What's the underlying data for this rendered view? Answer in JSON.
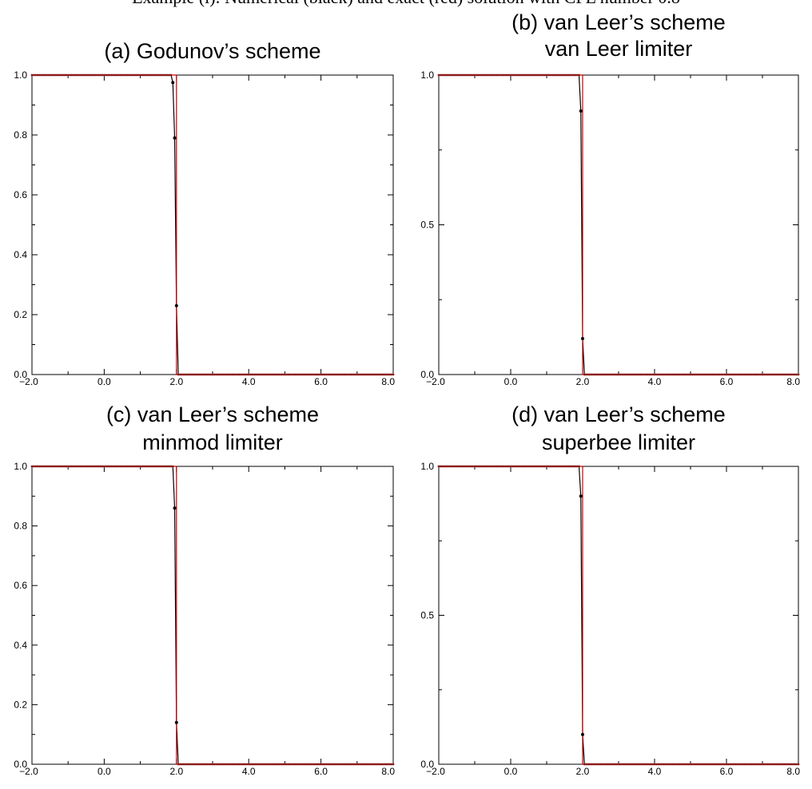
{
  "caption": "Example (i): Numerical (black) and exact (red) solution with CFL number 0.8",
  "colors": {
    "numerical": "#000000",
    "exact": "#cc0000"
  },
  "chart_data": [
    {
      "type": "line",
      "title": [
        "(a) Godunov’s scheme"
      ],
      "xlim": [
        -2,
        8
      ],
      "ylim": [
        0,
        1
      ],
      "xticks": [
        -2,
        0,
        2,
        4,
        6,
        8
      ],
      "xtick_labels": [
        "−2.0",
        "0.0",
        "2.0",
        "4.0",
        "6.0",
        "8.0"
      ],
      "yticks": [
        0,
        0.2,
        0.4,
        0.6,
        0.8,
        1.0
      ],
      "ytick_labels": [
        "0.0",
        "0.2",
        "0.4",
        "0.6",
        "0.8",
        "1.0"
      ],
      "series": [
        {
          "role": "numerical",
          "x": [
            -2,
            1.85,
            1.9,
            1.95,
            2.0,
            2.05,
            8
          ],
          "y": [
            1,
            1,
            0.975,
            0.79,
            0.23,
            0.0,
            0
          ]
        },
        {
          "role": "exact",
          "x": [
            -2,
            2.0,
            2.0,
            8
          ],
          "y": [
            1,
            1,
            0,
            0
          ]
        }
      ]
    },
    {
      "type": "line",
      "title": [
        "(b) van Leer’s scheme",
        "van Leer limiter"
      ],
      "xlim": [
        -2,
        8
      ],
      "ylim": [
        0,
        1
      ],
      "xticks": [
        -2,
        0,
        2,
        4,
        6,
        8
      ],
      "xtick_labels": [
        "−2.0",
        "0.0",
        "2.0",
        "4.0",
        "6.0",
        "8.0"
      ],
      "yticks": [
        0,
        0.5,
        1.0
      ],
      "ytick_labels": [
        "0.0",
        "0.5",
        "1.0"
      ],
      "series": [
        {
          "role": "numerical",
          "x": [
            -2,
            1.9,
            1.95,
            2.0,
            2.05,
            8
          ],
          "y": [
            1,
            1,
            0.88,
            0.12,
            0.0,
            0
          ]
        },
        {
          "role": "exact",
          "x": [
            -2,
            2.0,
            2.0,
            8
          ],
          "y": [
            1,
            1,
            0,
            0
          ]
        }
      ]
    },
    {
      "type": "line",
      "title": [
        "(c) van Leer’s scheme",
        "minmod limiter"
      ],
      "xlim": [
        -2,
        8
      ],
      "ylim": [
        0,
        1
      ],
      "xticks": [
        -2,
        0,
        2,
        4,
        6,
        8
      ],
      "xtick_labels": [
        "−2.0",
        "0.0",
        "2.0",
        "4.0",
        "6.0",
        "8.0"
      ],
      "yticks": [
        0,
        0.2,
        0.4,
        0.6,
        0.8,
        1.0
      ],
      "ytick_labels": [
        "0.0",
        "0.2",
        "0.4",
        "0.6",
        "0.8",
        "1.0"
      ],
      "series": [
        {
          "role": "numerical",
          "x": [
            -2,
            1.9,
            1.95,
            2.0,
            2.05,
            8
          ],
          "y": [
            1,
            1,
            0.86,
            0.14,
            0.0,
            0
          ]
        },
        {
          "role": "exact",
          "x": [
            -2,
            2.0,
            2.0,
            8
          ],
          "y": [
            1,
            1,
            0,
            0
          ]
        }
      ]
    },
    {
      "type": "line",
      "title": [
        "(d) van Leer’s scheme",
        "superbee limiter"
      ],
      "xlim": [
        -2,
        8
      ],
      "ylim": [
        0,
        1
      ],
      "xticks": [
        -2,
        0,
        2,
        4,
        6,
        8
      ],
      "xtick_labels": [
        "−2.0",
        "0.0",
        "2.0",
        "4.0",
        "6.0",
        "8.0"
      ],
      "yticks": [
        0,
        0.5,
        1.0
      ],
      "ytick_labels": [
        "0.0",
        "0.5",
        "1.0"
      ],
      "series": [
        {
          "role": "numerical",
          "x": [
            -2,
            1.9,
            1.95,
            2.0,
            2.05,
            8
          ],
          "y": [
            1,
            1,
            0.9,
            0.1,
            0.0,
            0
          ]
        },
        {
          "role": "exact",
          "x": [
            -2,
            2.0,
            2.0,
            8
          ],
          "y": [
            1,
            1,
            0,
            0
          ]
        }
      ]
    }
  ]
}
